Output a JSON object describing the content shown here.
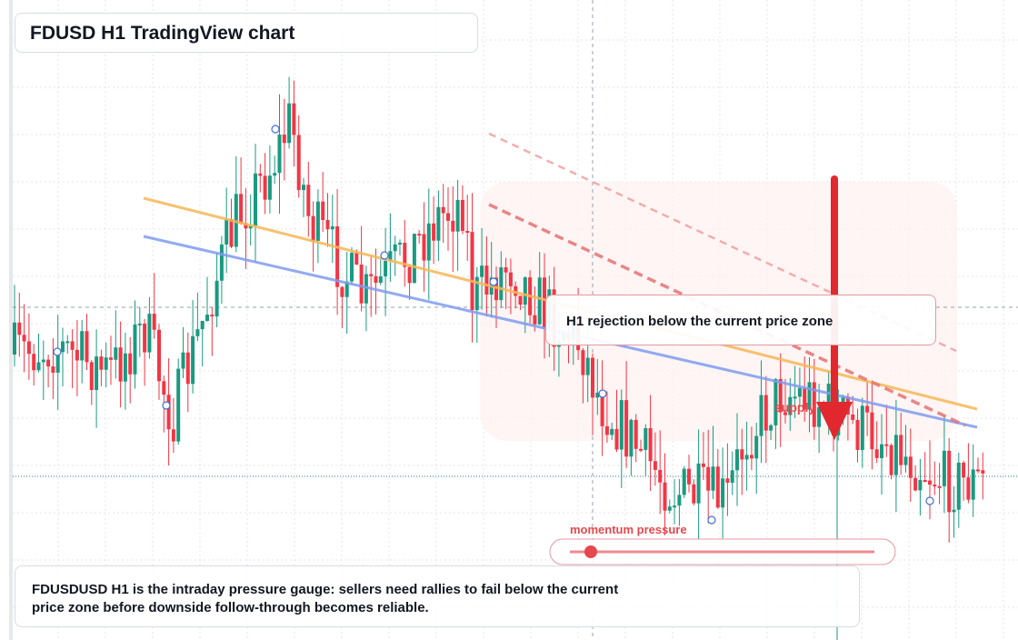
{
  "header": {
    "title": "FDUSD H1 TradingView chart"
  },
  "callout": {
    "text": "H1 rejection below the current price zone"
  },
  "labels": {
    "supply": "supply"
  },
  "gauge": {
    "label": "momentum pressure"
  },
  "note": {
    "text": "FDUSDUSD H1 is the intraday pressure gauge: sellers need rallies to fail below the current price zone before downside follow-through becomes reliable."
  }
}
